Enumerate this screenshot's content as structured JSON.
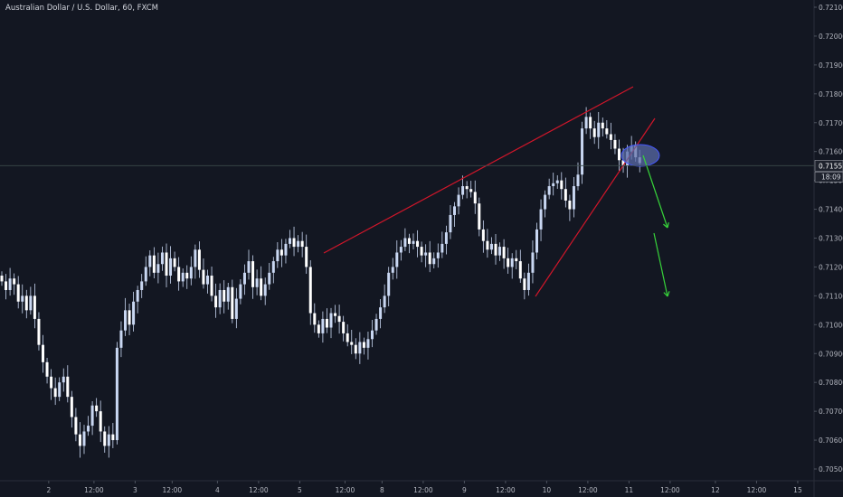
{
  "header": {
    "title": "Australian Dollar / U.S. Dollar, 60, FXCM"
  },
  "colors": {
    "background": "#131722",
    "axis_line": "#2a2e39",
    "bull": "#c9d7f2",
    "bear": "#ffffff",
    "wick": "#c9d7f2",
    "trendline": "#d0162a",
    "arrow": "#37d33a",
    "ellipse_fill": "#5a6ba8",
    "ellipse_stroke": "#4456ff",
    "crosshair": "#3a4a4a"
  },
  "chart_data": {
    "type": "candlestick",
    "symbol": "AUDUSD",
    "timeframe": "60",
    "y_axis": {
      "min": 0.704,
      "max": 0.7215,
      "ticks": [
        "0.72100",
        "0.72000",
        "0.71900",
        "0.71800",
        "0.71700",
        "0.71600",
        "0.71500",
        "0.71400",
        "0.71300",
        "0.71200",
        "0.71100",
        "0.71000",
        "0.70900",
        "0.70800",
        "0.70700",
        "0.70600",
        "0.70500"
      ]
    },
    "x_axis": {
      "ticks": [
        {
          "label": "2",
          "bar": 7
        },
        {
          "label": "12:00",
          "bar": 18
        },
        {
          "label": "3",
          "bar": 28
        },
        {
          "label": "12:00",
          "bar": 37
        },
        {
          "label": "4",
          "bar": 48
        },
        {
          "label": "12:00",
          "bar": 58
        },
        {
          "label": "5",
          "bar": 68
        },
        {
          "label": "12:00",
          "bar": 79
        },
        {
          "label": "8",
          "bar": 88
        },
        {
          "label": "12:00",
          "bar": 98
        },
        {
          "label": "9",
          "bar": 108
        },
        {
          "label": "12:00",
          "bar": 118
        },
        {
          "label": "10",
          "bar": 128
        },
        {
          "label": "12:00",
          "bar": 138
        },
        {
          "label": "11",
          "bar": 148
        },
        {
          "label": "12:00",
          "bar": 158
        },
        {
          "label": "12",
          "bar": 169
        },
        {
          "label": "12:00",
          "bar": 179
        },
        {
          "label": "15",
          "bar": 189
        },
        {
          "label": "12:00",
          "bar": 199
        }
      ]
    },
    "current_price": "0.71551",
    "countdown": "18:09",
    "closes": [
      0.7115,
      0.7112,
      0.7116,
      0.7114,
      0.7108,
      0.711,
      0.7105,
      0.711,
      0.7102,
      0.7093,
      0.7087,
      0.7082,
      0.7078,
      0.7075,
      0.708,
      0.7082,
      0.7075,
      0.7068,
      0.7062,
      0.7058,
      0.7063,
      0.7065,
      0.7072,
      0.707,
      0.7063,
      0.7058,
      0.7062,
      0.706,
      0.7092,
      0.7098,
      0.7105,
      0.71,
      0.7108,
      0.7112,
      0.7115,
      0.712,
      0.7124,
      0.7118,
      0.7121,
      0.7125,
      0.7117,
      0.7123,
      0.712,
      0.7115,
      0.7118,
      0.7116,
      0.712,
      0.7126,
      0.7119,
      0.7114,
      0.7117,
      0.711,
      0.7106,
      0.7112,
      0.7108,
      0.7113,
      0.7102,
      0.7109,
      0.7114,
      0.7118,
      0.7122,
      0.7113,
      0.7116,
      0.711,
      0.7114,
      0.7118,
      0.7122,
      0.7126,
      0.7124,
      0.7128,
      0.713,
      0.7127,
      0.7129,
      0.7127,
      0.712,
      0.7104,
      0.71,
      0.7097,
      0.7102,
      0.7099,
      0.7104,
      0.7103,
      0.7101,
      0.7097,
      0.7094,
      0.7093,
      0.709,
      0.7094,
      0.7092,
      0.7095,
      0.7098,
      0.7102,
      0.7106,
      0.711,
      0.7118,
      0.712,
      0.7125,
      0.7127,
      0.713,
      0.7128,
      0.7129,
      0.7127,
      0.7124,
      0.7125,
      0.7121,
      0.7123,
      0.7125,
      0.7128,
      0.7132,
      0.7138,
      0.7141,
      0.7145,
      0.7148,
      0.7147,
      0.7146,
      0.7142,
      0.7133,
      0.7129,
      0.7126,
      0.7128,
      0.7124,
      0.7127,
      0.7123,
      0.712,
      0.7123,
      0.7122,
      0.7116,
      0.7112,
      0.7118,
      0.7125,
      0.7133,
      0.714,
      0.7145,
      0.7148,
      0.7149,
      0.715,
      0.7147,
      0.7143,
      0.714,
      0.7148,
      0.7152,
      0.7168,
      0.7172,
      0.7168,
      0.7165,
      0.717,
      0.7168,
      0.7166,
      0.7164,
      0.7161,
      0.7157,
      0.7155,
      0.716,
      0.7162,
      0.7158,
      0.7156
    ]
  }
}
